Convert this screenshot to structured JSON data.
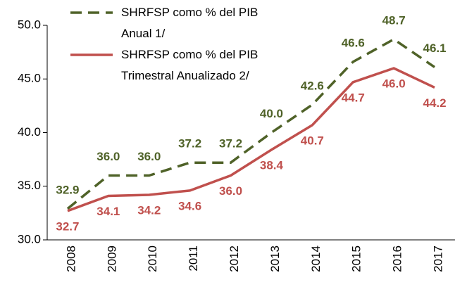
{
  "chart_data": {
    "type": "line",
    "categories": [
      "2008",
      "2009",
      "2010",
      "2011",
      "2012",
      "2013",
      "2014",
      "2015",
      "2016",
      "2017"
    ],
    "series": [
      {
        "name": "SHRFSP como % del PIB Anual 1/",
        "color": "#4f6228",
        "dashed": true,
        "values": [
          32.9,
          36.0,
          36.0,
          37.2,
          37.2,
          40.0,
          42.6,
          46.6,
          48.7,
          46.1
        ],
        "value_labels": [
          "32.9",
          "36.0",
          "36.0",
          "37.2",
          "37.2",
          "40.0",
          "42.6",
          "46.6",
          "48.7",
          "46.1"
        ]
      },
      {
        "name": "SHRFSP como % del PIB Trimestral Anualizado 2/",
        "color": "#c0504d",
        "dashed": false,
        "values": [
          32.7,
          34.1,
          34.2,
          34.6,
          36.0,
          38.4,
          40.7,
          44.7,
          46.0,
          44.2
        ],
        "value_labels": [
          "32.7",
          "34.1",
          "34.2",
          "34.6",
          "36.0",
          "38.4",
          "40.7",
          "44.7",
          "46.0",
          "44.2"
        ]
      }
    ],
    "ylim": [
      30,
      50
    ],
    "yticks": [
      {
        "value": 30,
        "label": "30.0"
      },
      {
        "value": 35,
        "label": "35.0"
      },
      {
        "value": 40,
        "label": "40.0"
      },
      {
        "value": 45,
        "label": "45.0"
      },
      {
        "value": 50,
        "label": "50.0"
      }
    ],
    "legend": "top-left"
  }
}
